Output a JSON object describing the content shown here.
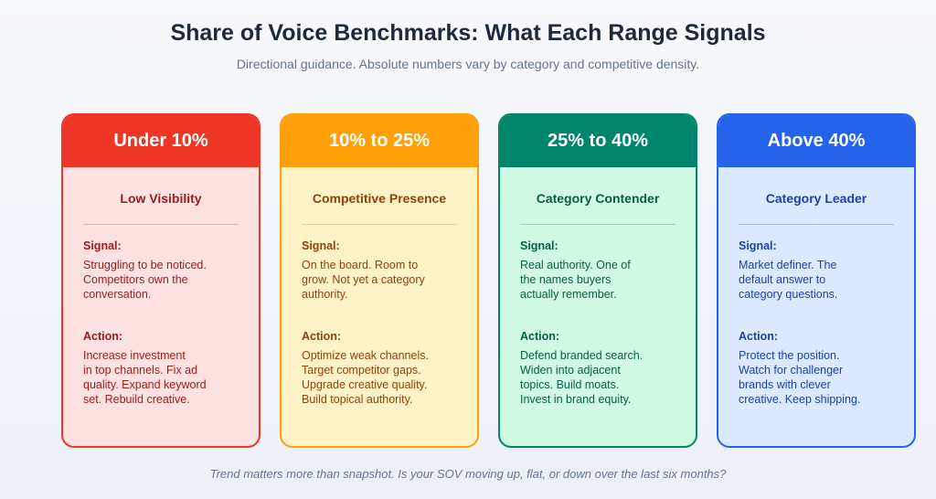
{
  "title": "Share of Voice Benchmarks: What Each Range Signals",
  "subtitle": "Directional guidance. Absolute numbers vary by category and competitive density.",
  "footer": "Trend matters more than snapshot. Is your SOV moving up, flat, or down over the last six months?",
  "cards": [
    {
      "range": "Under 10%",
      "name": "Low Visibility",
      "signal_label": "Signal:",
      "signal": [
        "Struggling to be noticed.",
        "Competitors own the",
        "conversation."
      ],
      "action_label": "Action:",
      "action": [
        "Increase investment",
        "in top channels. Fix ad",
        "quality. Expand keyword",
        "set. Rebuild creative."
      ],
      "colors": {
        "head": "#ee3526",
        "bg": "#fee2e2",
        "text": "#991b1b",
        "divider": "#fca5a5"
      }
    },
    {
      "range": "10% to 25%",
      "name": "Competitive Presence",
      "signal_label": "Signal:",
      "signal": [
        "On the board. Room to",
        "grow. Not yet a category",
        "authority."
      ],
      "action_label": "Action:",
      "action": [
        "Optimize weak channels.",
        "Target competitor gaps.",
        "Upgrade creative quality.",
        "Build topical authority."
      ],
      "colors": {
        "head": "#ff9f0a",
        "bg": "#fef3c7",
        "text": "#92400e",
        "divider": "#fcd34d"
      }
    },
    {
      "range": "25% to 40%",
      "name": "Category Contender",
      "signal_label": "Signal:",
      "signal": [
        "Real authority. One of",
        "the names buyers",
        "actually remember."
      ],
      "action_label": "Action:",
      "action": [
        "Defend branded search.",
        "Widen into adjacent",
        "topics. Build moats.",
        "Invest in brand equity."
      ],
      "colors": {
        "head": "#00856a",
        "bg": "#d1fae5",
        "text": "#065f46",
        "divider": "#6ee7b7"
      }
    },
    {
      "range": "Above 40%",
      "name": "Category Leader",
      "signal_label": "Signal:",
      "signal": [
        "Market definer. The",
        "default answer to",
        "category questions."
      ],
      "action_label": "Action:",
      "action": [
        "Protect the position.",
        "Watch for challenger",
        "brands with clever",
        "creative. Keep shipping."
      ],
      "colors": {
        "head": "#2563eb",
        "bg": "#dbeafe",
        "text": "#1e40af",
        "divider": "#93c5fd"
      }
    }
  ]
}
